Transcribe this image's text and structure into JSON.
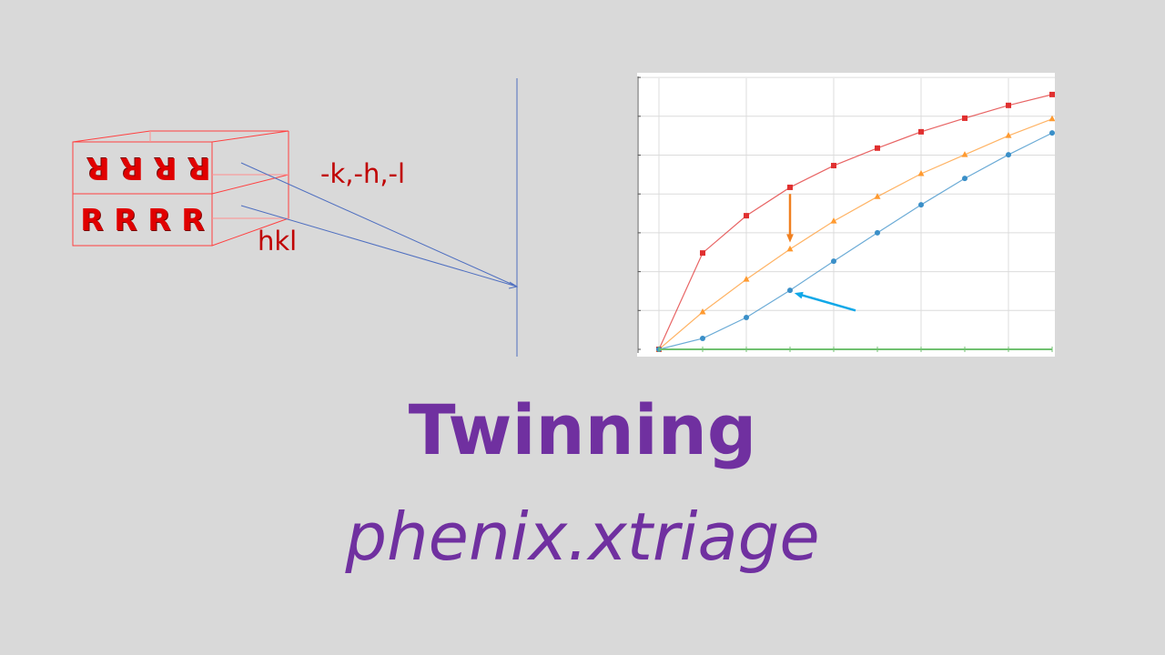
{
  "diagram": {
    "twin_letters": [
      "R",
      "R",
      "R",
      "R"
    ],
    "upper_label": "-k,-h,-l",
    "lower_label": "hkl",
    "colors": {
      "crystal": "#ff4040",
      "rays": "#4f6fc0",
      "labels": "#c00000"
    }
  },
  "chart_data": {
    "type": "line",
    "title": "",
    "xlabel": "",
    "ylabel": "",
    "x": [
      0,
      1,
      2,
      3,
      4,
      5,
      6,
      7,
      8,
      9
    ],
    "xlim": [
      -0.5,
      9
    ],
    "ylim": [
      0,
      7
    ],
    "grid": true,
    "series": [
      {
        "color": "#e03030",
        "marker": "square",
        "values": [
          0,
          2.48,
          3.44,
          4.17,
          4.73,
          5.18,
          5.6,
          5.95,
          6.28,
          6.56
        ]
      },
      {
        "color": "#ff9a30",
        "marker": "triangle",
        "values": [
          0,
          0.96,
          1.8,
          2.58,
          3.3,
          3.93,
          4.52,
          5.01,
          5.5,
          5.93
        ]
      },
      {
        "color": "#3a8fc8",
        "marker": "circle",
        "values": [
          0,
          0.28,
          0.82,
          1.52,
          2.27,
          3.0,
          3.72,
          4.4,
          5.01,
          5.57
        ]
      },
      {
        "color": "#70c070",
        "marker": "none",
        "values": [
          0,
          0,
          0,
          0,
          0,
          0,
          0,
          0,
          0,
          0
        ]
      }
    ],
    "annotations": [
      {
        "type": "arrow",
        "color": "#f08020",
        "from": [
          3,
          4.0
        ],
        "to": [
          3,
          2.75
        ]
      },
      {
        "type": "arrow",
        "color": "#10a8e8",
        "from": [
          4.5,
          1.0
        ],
        "to": [
          3.1,
          1.45
        ]
      }
    ]
  },
  "slide": {
    "title": "Twinning",
    "subtitle": "phenix.xtriage"
  }
}
